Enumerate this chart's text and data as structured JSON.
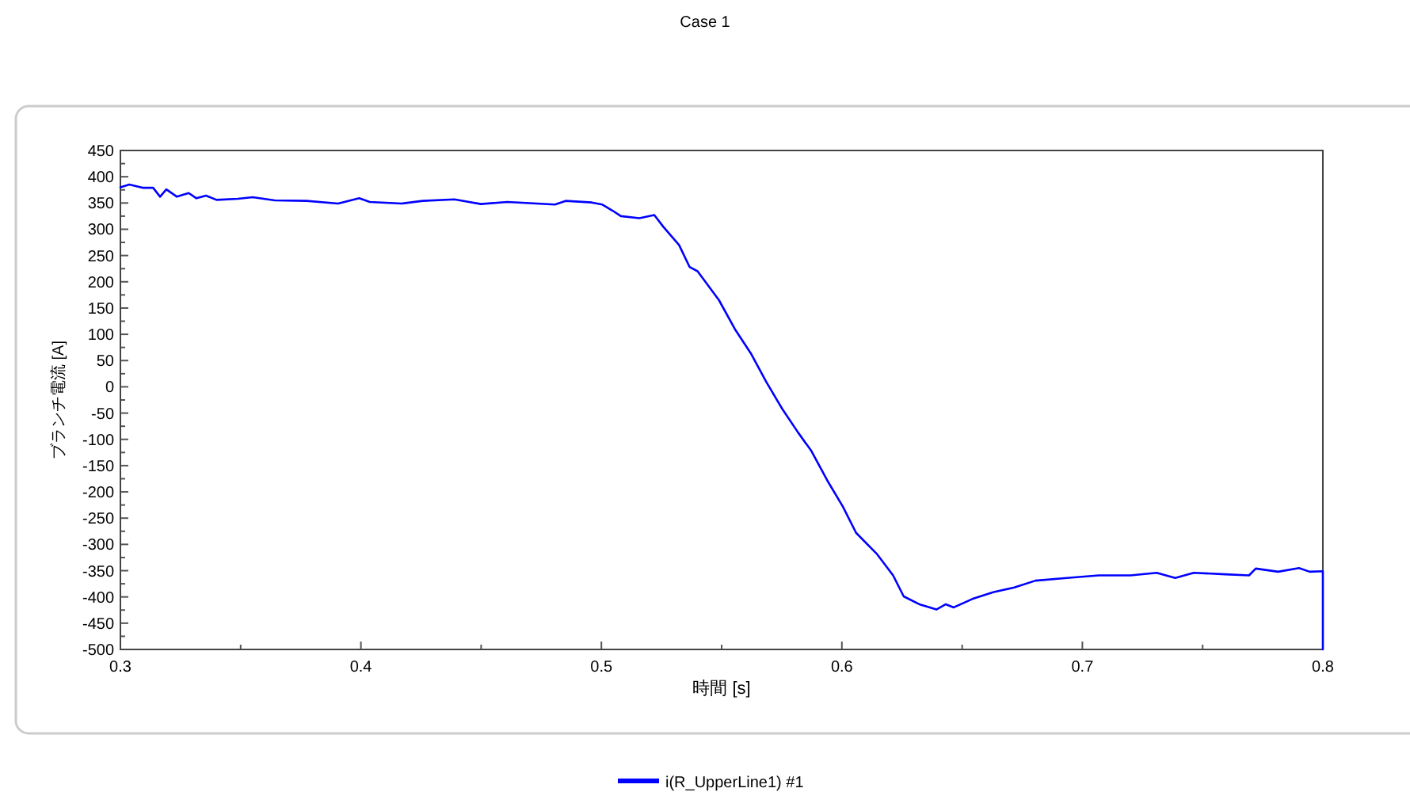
{
  "chart_data": {
    "type": "line",
    "title": "Case 1",
    "xlabel": "時間 [s]",
    "ylabel": "ブランチ電流 [A]",
    "legend": "bottom",
    "grid": false,
    "marker": "none",
    "line_style": "solid",
    "xlim": [
      0.3,
      0.8
    ],
    "ylim": [
      -500,
      450
    ],
    "xticks": [
      0.3,
      {
        "value": 0.35,
        "label": null
      },
      0.4,
      {
        "value": 0.45,
        "label": null
      },
      0.5,
      {
        "value": 0.55,
        "label": null
      },
      0.6,
      {
        "value": 0.65,
        "label": null
      },
      0.7,
      {
        "value": 0.75,
        "label": null
      },
      0.8
    ],
    "yticks": [
      -500,
      {
        "value": -475,
        "label": null
      },
      -450,
      {
        "value": -425,
        "label": null
      },
      -400,
      {
        "value": -375,
        "label": null
      },
      -350,
      {
        "value": -325,
        "label": null
      },
      -300,
      {
        "value": -275,
        "label": null
      },
      -250,
      {
        "value": -225,
        "label": null
      },
      -200,
      {
        "value": -175,
        "label": null
      },
      -150,
      {
        "value": -125,
        "label": null
      },
      -100,
      {
        "value": -75,
        "label": null
      },
      -50,
      {
        "value": -25,
        "label": null
      },
      0,
      {
        "value": 25,
        "label": null
      },
      50,
      {
        "value": 75,
        "label": null
      },
      100,
      {
        "value": 125,
        "label": null
      },
      150,
      {
        "value": 175,
        "label": null
      },
      200,
      {
        "value": 225,
        "label": null
      },
      250,
      {
        "value": 275,
        "label": null
      },
      300,
      {
        "value": 325,
        "label": null
      },
      350,
      {
        "value": 375,
        "label": null
      },
      400,
      {
        "value": 425,
        "label": null
      },
      450
    ],
    "series": [
      {
        "name": "i(R_UpperLine1) #1",
        "color": "#0000ff",
        "x": [
          0.3,
          0.3037,
          0.3092,
          0.3136,
          0.3165,
          0.3191,
          0.3235,
          0.3284,
          0.3316,
          0.3356,
          0.34,
          0.3488,
          0.355,
          0.3642,
          0.3774,
          0.3905,
          0.3993,
          0.4037,
          0.4169,
          0.4257,
          0.4389,
          0.4499,
          0.4609,
          0.4807,
          0.4851,
          0.496,
          0.5004,
          0.5048,
          0.5081,
          0.5158,
          0.522,
          0.5257,
          0.5323,
          0.5367,
          0.54,
          0.5489,
          0.5555,
          0.5621,
          0.5686,
          0.5752,
          0.5818,
          0.5873,
          0.5939,
          0.6004,
          0.6059,
          0.6147,
          0.6213,
          0.6257,
          0.6322,
          0.6393,
          0.6432,
          0.6465,
          0.6542,
          0.6629,
          0.6717,
          0.6805,
          0.6936,
          0.7068,
          0.72,
          0.7309,
          0.7386,
          0.7463,
          0.7594,
          0.7693,
          0.7721,
          0.7814,
          0.7901,
          0.7945,
          0.8,
          0.8
        ],
        "values": [
          380,
          385,
          379,
          379,
          362,
          376,
          362,
          369,
          359,
          364,
          356,
          358,
          361,
          355,
          354,
          349,
          359,
          352,
          349,
          354,
          357,
          348,
          352,
          347,
          354,
          351,
          347,
          335,
          325,
          321,
          327,
          305,
          270,
          228,
          220,
          165,
          110,
          64,
          9,
          -42,
          -87,
          -122,
          -178,
          -228,
          -278,
          -319,
          -359,
          -399,
          -414,
          -424,
          -414,
          -420,
          -404,
          -391,
          -382,
          -369,
          -364,
          -359,
          -359,
          -354,
          -364,
          -354,
          -357,
          -359,
          -346,
          -352,
          -345,
          -352,
          -351,
          -500
        ]
      }
    ]
  }
}
